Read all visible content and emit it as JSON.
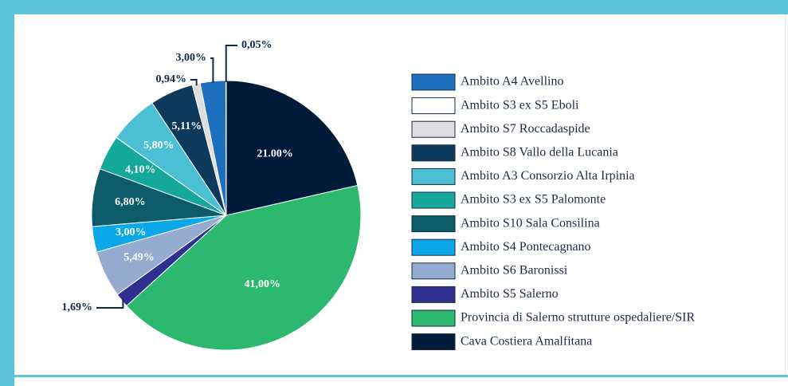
{
  "chart_data": {
    "type": "pie",
    "categories": [
      "Ambito A4 Avellino",
      "Ambito S3 ex S5 Eboli",
      "Ambito S7 Roccadaspide",
      "Ambito S8 Vallo della Lucania",
      "Ambito A3 Consorzio Alta Irpinia",
      "Ambito S3 ex S5 Palomonte",
      "Ambito S10 Sala Consilina",
      "Ambito S4 Pontecagnano",
      "Ambito S6 Baronissi",
      "Ambito S5 Salerno",
      "Provincia di Salerno strutture ospedaliere/SIR",
      "Cava Costiera Amalfitana"
    ],
    "values": [
      3.0,
      0.05,
      0.94,
      5.11,
      5.8,
      4.1,
      6.8,
      3.0,
      5.49,
      1.69,
      41.0,
      21.0
    ],
    "value_labels": [
      "3,00%",
      "0,05%",
      "0,94%",
      "5,11%",
      "5,80%",
      "4,10%",
      "6,80%",
      "3,00%",
      "5,49%",
      "1,69%",
      "41,00%",
      "21.00%"
    ],
    "colors": [
      "#1f6fbf",
      "#ffffff",
      "#dedede",
      "#0d3a5c",
      "#4bbfd3",
      "#14a99b",
      "#0b5b6b",
      "#0aa8e8",
      "#94acd0",
      "#2e2f8f",
      "#2db870",
      "#001a3a"
    ],
    "legend": "right"
  }
}
